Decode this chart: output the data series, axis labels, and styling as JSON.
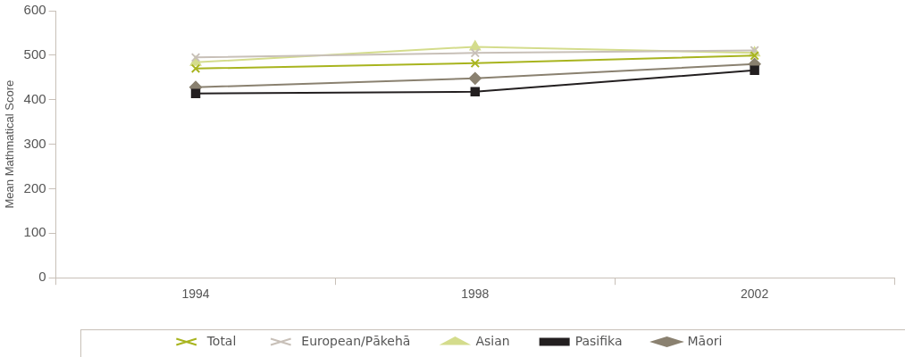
{
  "chart_data": {
    "type": "line",
    "ylabel": "Mean Mathmatical Score",
    "categories": [
      "1994",
      "1998",
      "2002"
    ],
    "ylim": [
      0,
      600
    ],
    "yticks": [
      0,
      100,
      200,
      300,
      400,
      500,
      600
    ],
    "grid": false,
    "legend": "bottom",
    "line_style": "solid",
    "series": [
      {
        "name": "Māori",
        "color": "#8a8170",
        "marker": "diamond",
        "values": [
          428,
          448,
          480
        ]
      },
      {
        "name": "Pasifika",
        "color": "#231f20",
        "marker": "square",
        "values": [
          414,
          418,
          466
        ]
      },
      {
        "name": "Asian",
        "color": "#d4dc8c",
        "marker": "triangle",
        "values": [
          484,
          519,
          505
        ]
      },
      {
        "name": "European/Pākehā",
        "color": "#c8c0b8",
        "marker": "cross",
        "values": [
          495,
          505,
          511
        ]
      },
      {
        "name": "Total",
        "color": "#a8b41e",
        "marker": "cross",
        "values": [
          470,
          482,
          499
        ]
      }
    ]
  }
}
